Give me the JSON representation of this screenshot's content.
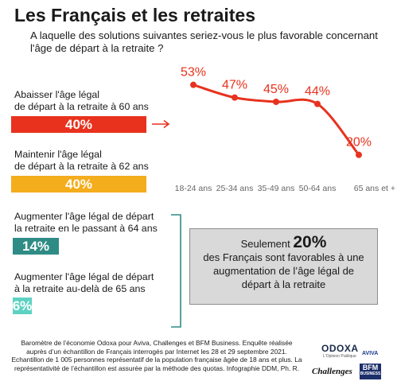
{
  "title": "Les Français et les retraites",
  "subtitle": "A laquelle des solutions suivantes seriez-vous le plus favorable concernant l'âge de départ à la retraite ?",
  "options": [
    {
      "label_line1": "Abaisser l'âge légal",
      "label_line2": "de départ à la retraite à 60 ans",
      "value_label": "40%",
      "value": 40,
      "color": "#e8321e"
    },
    {
      "label_line1": "Maintenir l'âge légal",
      "label_line2": "de départ à la retraite à 62 ans",
      "value_label": "40%",
      "value": 40,
      "color": "#f4ad1c"
    },
    {
      "label_line1": "Augmenter l'âge légal de départ",
      "label_line2": "la retraite en le passant à 64 ans",
      "value_label": "14%",
      "value": 14,
      "color": "#2f8c85"
    },
    {
      "label_line1": "Augmenter l'âge légal de départ",
      "label_line2": "à la retraite au-delà de 65 ans",
      "value_label": "6%",
      "value": 6,
      "color": "#5ed2c2"
    }
  ],
  "chart_data": {
    "type": "line",
    "categories": [
      "18-24 ans",
      "25-34 ans",
      "35-49 ans",
      "50-64 ans",
      "65 ans et +"
    ],
    "series": [
      {
        "values": [
          53,
          47,
          45,
          44,
          20
        ],
        "data_labels": [
          "53%",
          "47%",
          "45%",
          "44%",
          "20%"
        ],
        "color": "#e8321e"
      }
    ],
    "title": "",
    "xlabel": "",
    "ylabel": "",
    "ylim": [
      15,
      60
    ],
    "grid": false
  },
  "arrow_color": "#e8321e",
  "bracket_color": "#2f8c85",
  "callout": {
    "line1_prefix": "Seulement",
    "line1_value": "20%",
    "line2": "des Français sont favorables à une",
    "line3": "augmentation de l’âge légal de",
    "line4": "départ à la retraite"
  },
  "footer": {
    "line1": "Baromètre de l’économie Odoxa pour Aviva, Challenges et BFM Business. Enquête réalisée",
    "line2": "auprès d’un échantillon de Français interrogés par Internet les 28 et 29 septembre 2021.",
    "line3": "Echantillon de 1 005 personnes représentatif de la population française âgée de 18 ans et plus. La",
    "line4": "représentativité de l’échantillon est assurée par la méthode des quotas. Infographie DDM, Ph. R."
  },
  "logos": {
    "odoxa": "ODOXA",
    "odoxa_tagline": "L'Opinion Publique",
    "aviva": "AVIVA",
    "challenges": "Challenges",
    "bfm_line1": "BFM",
    "bfm_line2": "BUSINESS"
  }
}
